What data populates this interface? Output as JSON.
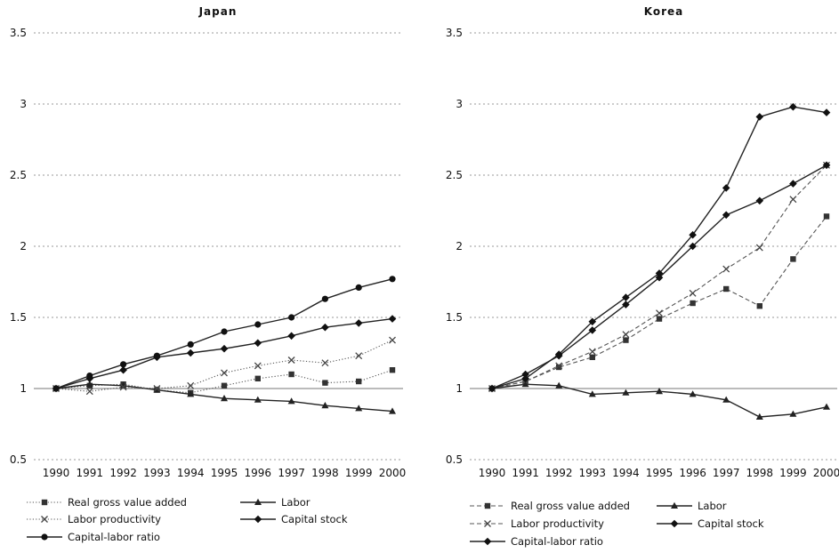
{
  "chart_data": [
    {
      "type": "line",
      "title": "Japan",
      "categories": [
        "1990",
        "1991",
        "1992",
        "1993",
        "1994",
        "1995",
        "1996",
        "1997",
        "1998",
        "1999",
        "2000"
      ],
      "ylim": [
        0.5,
        3.5
      ],
      "yticks": [
        "0.5",
        "1",
        "1.5",
        "2",
        "2.5",
        "3",
        "3.5"
      ],
      "grid": "horizontal",
      "legend_position": "bottom",
      "series": [
        {
          "name": "Real gross value added",
          "marker": "square",
          "dash": "dotted",
          "values": [
            1.0,
            1.02,
            1.03,
            0.99,
            0.97,
            1.02,
            1.07,
            1.1,
            1.04,
            1.05,
            1.13
          ]
        },
        {
          "name": "Labor",
          "marker": "triangle",
          "dash": "solid",
          "values": [
            1.0,
            1.03,
            1.02,
            0.99,
            0.96,
            0.93,
            0.92,
            0.91,
            0.88,
            0.86,
            0.84
          ]
        },
        {
          "name": "Labor productivity",
          "marker": "cross",
          "dash": "dotted",
          "values": [
            1.0,
            0.98,
            1.01,
            1.0,
            1.02,
            1.11,
            1.16,
            1.2,
            1.18,
            1.23,
            1.34
          ]
        },
        {
          "name": "Capital stock",
          "marker": "diamond",
          "dash": "solid",
          "values": [
            1.0,
            1.07,
            1.13,
            1.22,
            1.25,
            1.28,
            1.32,
            1.37,
            1.43,
            1.46,
            1.49
          ]
        },
        {
          "name": "Capital-labor ratio",
          "marker": "circle",
          "dash": "solid",
          "values": [
            1.0,
            1.09,
            1.17,
            1.23,
            1.31,
            1.4,
            1.45,
            1.5,
            1.63,
            1.71,
            1.77
          ]
        }
      ]
    },
    {
      "type": "line",
      "title": "Korea",
      "categories": [
        "1990",
        "1991",
        "1992",
        "1993",
        "1994",
        "1995",
        "1996",
        "1997",
        "1998",
        "1999",
        "2000"
      ],
      "ylim": [
        0.5,
        3.5
      ],
      "yticks": [
        "0.5",
        "1",
        "1.5",
        "2",
        "2.5",
        "3",
        "3.5"
      ],
      "grid": "horizontal",
      "legend_position": "bottom",
      "series": [
        {
          "name": "Real gross value added",
          "marker": "square",
          "dash": "dashed",
          "values": [
            1.0,
            1.05,
            1.15,
            1.22,
            1.34,
            1.49,
            1.6,
            1.7,
            1.58,
            1.91,
            2.21
          ]
        },
        {
          "name": "Labor",
          "marker": "triangle",
          "dash": "solid",
          "values": [
            1.0,
            1.03,
            1.02,
            0.96,
            0.97,
            0.98,
            0.96,
            0.92,
            0.8,
            0.82,
            0.87
          ]
        },
        {
          "name": "Labor productivity",
          "marker": "cross",
          "dash": "dashed",
          "values": [
            1.0,
            1.05,
            1.16,
            1.26,
            1.38,
            1.53,
            1.67,
            1.84,
            1.99,
            2.33,
            2.57
          ]
        },
        {
          "name": "Capital stock",
          "marker": "diamond",
          "dash": "solid",
          "values": [
            1.0,
            1.1,
            1.23,
            1.41,
            1.59,
            1.78,
            2.0,
            2.22,
            2.32,
            2.44,
            2.57
          ]
        },
        {
          "name": "Capital-labor ratio",
          "marker": "diamond",
          "dash": "solid",
          "values": [
            1.0,
            1.07,
            1.24,
            1.47,
            1.64,
            1.81,
            2.08,
            2.41,
            2.91,
            2.98,
            2.94
          ]
        }
      ]
    }
  ]
}
